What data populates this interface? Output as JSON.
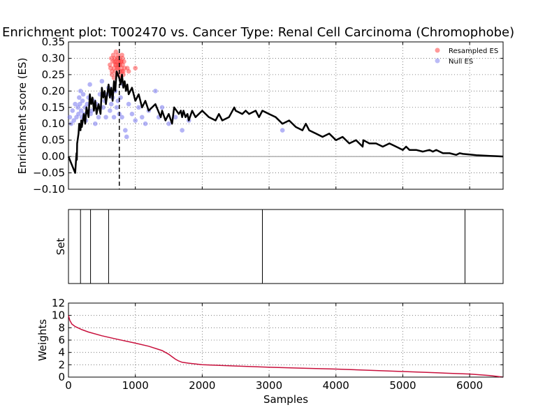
{
  "title": "Enrichment plot: T002470 vs. Cancer Type: Renal Cell Carcinoma (Chromophobe)",
  "colors": {
    "es_line": "#000000",
    "resampled": "#ff3333",
    "null_es": "#7777ee",
    "weights_line": "#c8103c",
    "grid": "#666666",
    "set_line": "#000000"
  },
  "chart_data": [
    {
      "type": "line",
      "id": "enrichment",
      "ylabel": "Enrichment score (ES)",
      "xlim": [
        0,
        6500
      ],
      "ylim": [
        -0.1,
        0.35
      ],
      "yticks": [
        -0.1,
        -0.05,
        0.0,
        0.05,
        0.1,
        0.15,
        0.2,
        0.25,
        0.3,
        0.35
      ],
      "ytick_labels": [
        "−0.10",
        "−0.05",
        "0.00",
        "0.05",
        "0.10",
        "0.15",
        "0.20",
        "0.25",
        "0.30",
        "0.35"
      ],
      "xticks": [
        0,
        1000,
        2000,
        3000,
        4000,
        5000,
        6000
      ],
      "grid": true,
      "legend": {
        "placement": "top-right",
        "entries": [
          {
            "label": "Resampled ES",
            "color": "#ff3333"
          },
          {
            "label": "Null ES",
            "color": "#7777ee"
          }
        ]
      },
      "vline_x": 760,
      "es_curve": {
        "x": [
          0,
          60,
          100,
          120,
          125,
          130,
          150,
          160,
          180,
          190,
          200,
          230,
          250,
          270,
          300,
          320,
          340,
          360,
          380,
          400,
          420,
          450,
          480,
          500,
          520,
          540,
          560,
          580,
          600,
          620,
          640,
          660,
          680,
          700,
          720,
          760,
          780,
          800,
          820,
          840,
          860,
          880,
          900,
          950,
          1000,
          1050,
          1100,
          1150,
          1200,
          1300,
          1380,
          1400,
          1450,
          1500,
          1550,
          1580,
          1650,
          1680,
          1700,
          1720,
          1750,
          1780,
          1800,
          1850,
          1900,
          2000,
          2100,
          2200,
          2250,
          2300,
          2400,
          2480,
          2500,
          2600,
          2650,
          2700,
          2800,
          2850,
          2900,
          3000,
          3100,
          3200,
          3300,
          3400,
          3500,
          3550,
          3600,
          3700,
          3800,
          3900,
          4000,
          4100,
          4200,
          4300,
          4400,
          4410,
          4500,
          4600,
          4700,
          4800,
          4900,
          5000,
          5050,
          5100,
          5200,
          5300,
          5400,
          5450,
          5500,
          5600,
          5700,
          5800,
          5850,
          5900,
          6000,
          6100,
          6200,
          6300,
          6400,
          6500
        ],
        "y": [
          0.0,
          -0.03,
          -0.05,
          0.01,
          -0.01,
          0.04,
          0.07,
          0.1,
          0.08,
          0.11,
          0.09,
          0.13,
          0.1,
          0.15,
          0.12,
          0.19,
          0.16,
          0.18,
          0.14,
          0.17,
          0.13,
          0.16,
          0.13,
          0.21,
          0.18,
          0.2,
          0.16,
          0.19,
          0.22,
          0.18,
          0.21,
          0.17,
          0.23,
          0.2,
          0.26,
          0.24,
          0.22,
          0.25,
          0.21,
          0.23,
          0.2,
          0.22,
          0.19,
          0.21,
          0.17,
          0.19,
          0.15,
          0.17,
          0.14,
          0.16,
          0.12,
          0.14,
          0.11,
          0.13,
          0.1,
          0.15,
          0.13,
          0.14,
          0.12,
          0.14,
          0.12,
          0.13,
          0.11,
          0.14,
          0.12,
          0.14,
          0.12,
          0.11,
          0.13,
          0.11,
          0.12,
          0.15,
          0.14,
          0.13,
          0.14,
          0.13,
          0.14,
          0.12,
          0.14,
          0.13,
          0.12,
          0.1,
          0.11,
          0.09,
          0.08,
          0.1,
          0.08,
          0.07,
          0.06,
          0.07,
          0.05,
          0.06,
          0.04,
          0.05,
          0.03,
          0.05,
          0.04,
          0.04,
          0.03,
          0.04,
          0.03,
          0.02,
          0.03,
          0.02,
          0.02,
          0.015,
          0.02,
          0.015,
          0.02,
          0.01,
          0.01,
          0.005,
          0.01,
          0.008,
          0.006,
          0.004,
          0.003,
          0.002,
          0.001,
          0.0
        ]
      },
      "null_es": {
        "x": [
          20,
          40,
          60,
          80,
          100,
          120,
          140,
          150,
          160,
          170,
          180,
          190,
          200,
          210,
          220,
          230,
          250,
          260,
          280,
          300,
          320,
          330,
          350,
          380,
          400,
          420,
          450,
          470,
          500,
          520,
          540,
          560,
          580,
          600,
          620,
          640,
          660,
          680,
          700,
          720,
          740,
          760,
          780,
          800,
          820,
          850,
          870,
          900,
          950,
          1000,
          1050,
          1100,
          1150,
          1200,
          1300,
          1350,
          1400,
          1500,
          1600,
          1700,
          1800,
          3200
        ],
        "y": [
          0.12,
          0.1,
          0.14,
          0.11,
          0.16,
          0.12,
          0.15,
          0.13,
          0.18,
          0.16,
          0.2,
          0.14,
          0.12,
          0.17,
          0.19,
          0.13,
          0.15,
          0.11,
          0.16,
          0.18,
          0.22,
          0.13,
          0.14,
          0.17,
          0.1,
          0.16,
          0.12,
          0.19,
          0.23,
          0.15,
          0.17,
          0.12,
          0.19,
          0.21,
          0.14,
          0.16,
          0.18,
          0.12,
          0.2,
          0.15,
          0.17,
          0.13,
          0.18,
          0.12,
          0.22,
          0.08,
          0.06,
          0.16,
          0.13,
          0.11,
          0.15,
          0.12,
          0.1,
          0.14,
          0.2,
          0.12,
          0.15,
          0.1,
          0.12,
          0.08,
          0.11,
          0.08
        ]
      },
      "resampled_es": {
        "x": [
          620,
          630,
          640,
          650,
          660,
          670,
          680,
          690,
          700,
          710,
          720,
          730,
          740,
          750,
          760,
          770,
          780,
          790,
          800,
          810,
          820,
          830,
          840,
          650,
          680,
          700,
          720,
          740,
          760,
          780,
          800,
          820,
          690,
          710,
          730,
          750,
          770,
          790,
          810,
          880,
          900,
          1000
        ],
        "y": [
          0.28,
          0.27,
          0.3,
          0.26,
          0.29,
          0.31,
          0.27,
          0.3,
          0.28,
          0.32,
          0.29,
          0.27,
          0.31,
          0.28,
          0.3,
          0.26,
          0.29,
          0.27,
          0.31,
          0.28,
          0.26,
          0.29,
          0.27,
          0.25,
          0.24,
          0.26,
          0.25,
          0.27,
          0.25,
          0.24,
          0.26,
          0.25,
          0.29,
          0.28,
          0.3,
          0.29,
          0.28,
          0.29,
          0.3,
          0.27,
          0.26,
          0.27
        ]
      }
    },
    {
      "type": "line",
      "id": "set",
      "ylabel": "Set",
      "xlim": [
        0,
        6500
      ],
      "set_positions": [
        180,
        330,
        600,
        2900,
        5930
      ]
    },
    {
      "type": "line",
      "id": "weights",
      "ylabel": "Weights",
      "xlabel": "Samples",
      "xlim": [
        0,
        6500
      ],
      "ylim": [
        0,
        12
      ],
      "yticks": [
        0,
        2,
        4,
        6,
        8,
        10,
        12
      ],
      "xticks": [
        0,
        1000,
        2000,
        3000,
        4000,
        5000,
        6000
      ],
      "grid": true,
      "curve": {
        "x": [
          0,
          20,
          50,
          100,
          200,
          300,
          500,
          700,
          1000,
          1200,
          1400,
          1500,
          1550,
          1600,
          1650,
          1700,
          1800,
          2000,
          2500,
          3000,
          3500,
          4000,
          4500,
          5000,
          5500,
          6000,
          6300,
          6500
        ],
        "y": [
          10.0,
          9.2,
          8.6,
          8.2,
          7.7,
          7.3,
          6.7,
          6.2,
          5.5,
          5.0,
          4.3,
          3.7,
          3.3,
          2.9,
          2.6,
          2.4,
          2.25,
          2.0,
          1.8,
          1.6,
          1.45,
          1.3,
          1.1,
          0.9,
          0.7,
          0.5,
          0.25,
          0.0
        ]
      }
    }
  ]
}
